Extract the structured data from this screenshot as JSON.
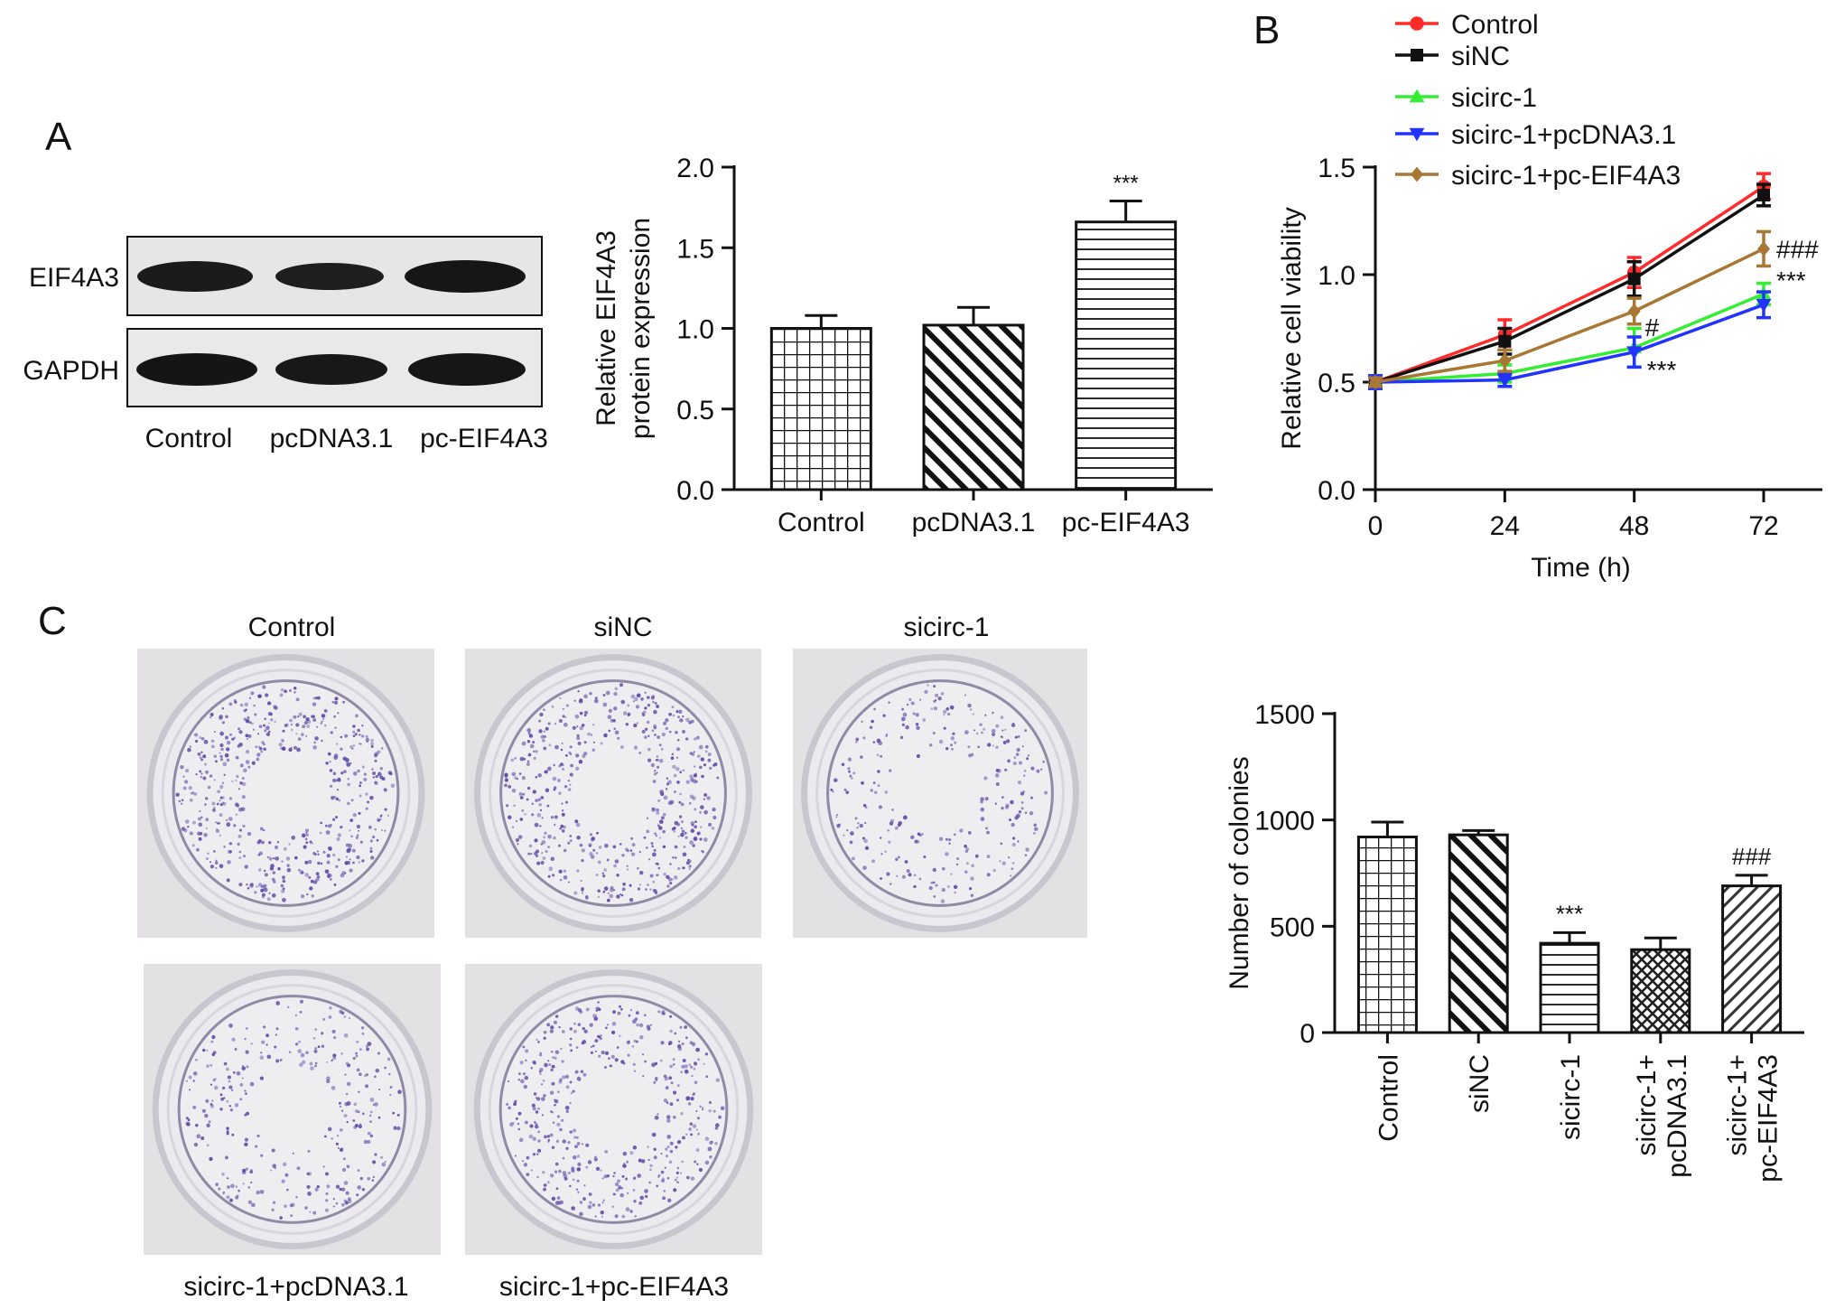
{
  "panel_labels": {
    "a": "A",
    "b": "B",
    "c": "C"
  },
  "blot": {
    "rows": [
      "EIF4A3",
      "GAPDH"
    ],
    "lanes": [
      "Control",
      "pcDNA3.1",
      "pc-EIF4A3"
    ]
  },
  "plates": {
    "labels": [
      "Control",
      "siNC",
      "sicirc-1",
      "sicirc-1+pcDNA3.1",
      "sicirc-1+pc-EIF4A3"
    ],
    "dish_color": "#c9c6cf",
    "colony_color": "#5a4fa8",
    "background_color": "#e4e1e4"
  },
  "chart_data": [
    {
      "id": "A",
      "type": "bar",
      "ylabel": [
        "Relative EIF4A3",
        "protein expression"
      ],
      "xlabel": "",
      "ylim": [
        0,
        2.0
      ],
      "yticks": [
        0.0,
        0.5,
        1.0,
        1.5,
        2.0
      ],
      "ytick_labels": [
        "0.0",
        "0.5",
        "1.0",
        "1.5",
        "2.0"
      ],
      "categories": [
        "Control",
        "pcDNA3.1",
        "pc-EIF4A3"
      ],
      "values": [
        1.0,
        1.02,
        1.66
      ],
      "errors": [
        0.08,
        0.11,
        0.13
      ],
      "patterns": [
        "grid",
        "diag-down",
        "horizontal"
      ],
      "annotations": [
        "",
        "",
        "***"
      ]
    },
    {
      "id": "B",
      "type": "line",
      "xlabel": "Time (h)",
      "ylabel": "Relative cell viability",
      "x": [
        0,
        24,
        48,
        72
      ],
      "xlim": [
        0,
        80
      ],
      "xticks": [
        0,
        24,
        48,
        72
      ],
      "xtick_labels": [
        "0",
        "24",
        "48",
        "72"
      ],
      "ylim": [
        0,
        1.5
      ],
      "yticks": [
        0.0,
        0.5,
        1.0,
        1.5
      ],
      "ytick_labels": [
        "0.0",
        "0.5",
        "1.0",
        "1.5"
      ],
      "legend_position": "top",
      "series": [
        {
          "name": "Control",
          "color": "#ff2a2a",
          "marker": "circle",
          "values": [
            0.5,
            0.72,
            1.01,
            1.41
          ],
          "errors": [
            0.03,
            0.07,
            0.07,
            0.06
          ]
        },
        {
          "name": "siNC",
          "color": "#111111",
          "marker": "square",
          "values": [
            0.5,
            0.69,
            0.98,
            1.37
          ],
          "errors": [
            0.03,
            0.06,
            0.08,
            0.05
          ]
        },
        {
          "name": "sicirc-1",
          "color": "#33ee33",
          "marker": "triangle-up",
          "values": [
            0.5,
            0.54,
            0.66,
            0.91
          ],
          "errors": [
            0.03,
            0.04,
            0.09,
            0.05
          ]
        },
        {
          "name": "sicirc-1+pcDNA3.1",
          "color": "#2233ff",
          "marker": "triangle-down",
          "values": [
            0.5,
            0.51,
            0.64,
            0.86
          ],
          "errors": [
            0.03,
            0.03,
            0.07,
            0.06
          ]
        },
        {
          "name": "sicirc-1+pc-EIF4A3",
          "color": "#a87733",
          "marker": "diamond",
          "values": [
            0.5,
            0.6,
            0.83,
            1.12
          ],
          "errors": [
            0.02,
            0.05,
            0.06,
            0.08
          ]
        }
      ],
      "annotations": [
        {
          "text": "###",
          "x": 72,
          "y": 1.12
        },
        {
          "text": "***",
          "x": 72,
          "y": 0.95
        },
        {
          "text": "#",
          "x": 48,
          "y": 0.79
        },
        {
          "text": "***",
          "x": 48,
          "y": 0.55
        }
      ]
    },
    {
      "id": "C",
      "type": "bar",
      "ylabel": "Number of colonies",
      "xlabel": "",
      "ylim": [
        0,
        1500
      ],
      "yticks": [
        0,
        500,
        1000,
        1500
      ],
      "ytick_labels": [
        "0",
        "500",
        "1000",
        "1500"
      ],
      "categories": [
        [
          "Control"
        ],
        [
          "siNC"
        ],
        [
          "sicirc-1"
        ],
        [
          "sicirc-1+",
          "pcDNA3.1"
        ],
        [
          "sicirc-1+",
          "pc-EIF4A3"
        ]
      ],
      "values": [
        920,
        930,
        420,
        390,
        690
      ],
      "errors": [
        70,
        20,
        50,
        55,
        50
      ],
      "patterns": [
        "grid",
        "diag-down",
        "horizontal",
        "crosshatch",
        "diag-up"
      ],
      "annotations": [
        "",
        "",
        "***",
        "",
        "###"
      ]
    }
  ]
}
